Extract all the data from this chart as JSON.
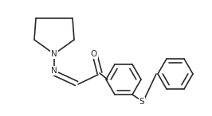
{
  "background_color": "#ffffff",
  "line_color": "#2a2a2a",
  "line_width": 1.2,
  "figsize": [
    2.66,
    1.46
  ],
  "dpi": 100,
  "atom_labels": {
    "N1": {
      "text": "N",
      "fontsize": 7.5
    },
    "N2": {
      "text": "N",
      "fontsize": 7.5
    },
    "O": {
      "text": "O",
      "fontsize": 7.5
    },
    "S": {
      "text": "S",
      "fontsize": 7.5
    }
  }
}
